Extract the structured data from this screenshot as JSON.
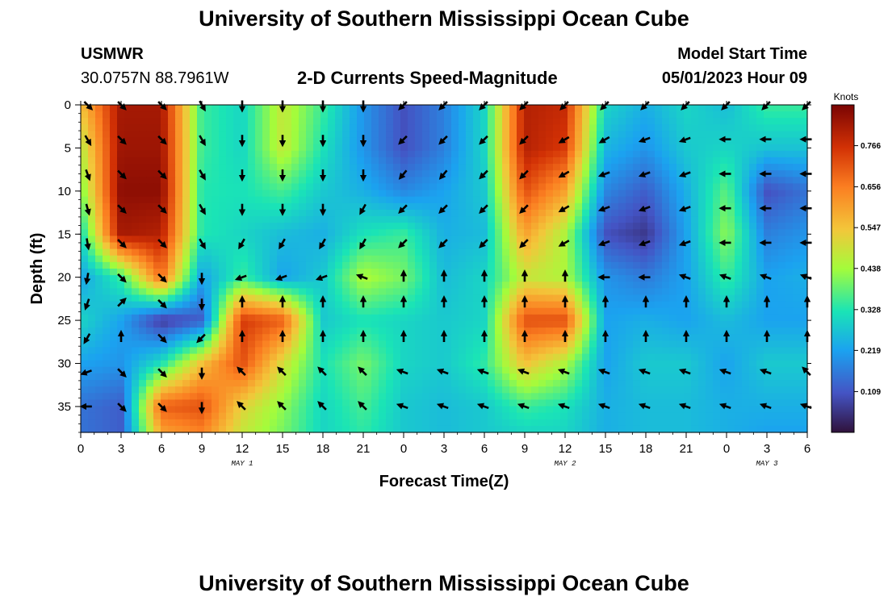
{
  "header": {
    "title": "University of Southern Mississippi Ocean Cube",
    "station": "USMWR",
    "coords": "30.0757N  88.7961W",
    "subtitle": "2-D Currents Speed-Magnitude",
    "model_start_label": "Model Start Time",
    "model_start_value": "05/01/2023 Hour 09"
  },
  "footer": {
    "title": "University of Southern Mississippi Ocean Cube"
  },
  "chart_data": {
    "type": "heatmap",
    "title": "2-D Currents Speed-Magnitude",
    "xlabel": "Forecast Time(Z)",
    "ylabel": "Depth (ft)",
    "x_range_hours": [
      0,
      54
    ],
    "x_tick_labels": [
      "0",
      "3",
      "6",
      "9",
      "12",
      "15",
      "18",
      "21",
      "0",
      "3",
      "6",
      "9",
      "12",
      "15",
      "18",
      "21",
      "0",
      "3",
      "6"
    ],
    "date_labels": [
      {
        "text": "MAY 1",
        "hour": 12
      },
      {
        "text": "MAY 2",
        "hour": 36
      },
      {
        "text": "MAY 3",
        "hour": 51
      }
    ],
    "depth_range_ft": [
      0,
      38
    ],
    "y_ticks": [
      0,
      5,
      10,
      15,
      20,
      25,
      30,
      35
    ],
    "colorbar": {
      "label": "Knots",
      "range": [
        0,
        0.875
      ],
      "ticks": [
        0.109,
        0.219,
        0.328,
        0.438,
        0.547,
        0.656,
        0.766
      ]
    },
    "speed_field_knots": {
      "columns_hour": [
        0,
        3,
        6,
        9,
        12,
        15,
        18,
        21,
        24,
        27,
        30,
        33,
        36,
        39,
        42,
        45,
        48,
        51,
        54
      ],
      "rows_depth_ft": [
        0,
        5,
        10,
        15,
        20,
        25,
        30,
        35,
        38
      ],
      "values": [
        [
          0.55,
          0.82,
          0.82,
          0.35,
          0.3,
          0.48,
          0.35,
          0.2,
          0.1,
          0.17,
          0.3,
          0.8,
          0.78,
          0.3,
          0.24,
          0.3,
          0.26,
          0.35,
          0.35
        ],
        [
          0.46,
          0.83,
          0.83,
          0.35,
          0.3,
          0.48,
          0.32,
          0.2,
          0.1,
          0.17,
          0.3,
          0.8,
          0.75,
          0.25,
          0.2,
          0.28,
          0.3,
          0.27,
          0.27
        ],
        [
          0.4,
          0.85,
          0.85,
          0.33,
          0.32,
          0.36,
          0.28,
          0.24,
          0.18,
          0.22,
          0.28,
          0.72,
          0.6,
          0.18,
          0.12,
          0.24,
          0.38,
          0.1,
          0.15
        ],
        [
          0.3,
          0.82,
          0.8,
          0.33,
          0.3,
          0.26,
          0.24,
          0.32,
          0.35,
          0.24,
          0.26,
          0.6,
          0.45,
          0.1,
          0.06,
          0.22,
          0.42,
          0.17,
          0.2
        ],
        [
          0.22,
          0.35,
          0.68,
          0.22,
          0.35,
          0.22,
          0.28,
          0.45,
          0.4,
          0.26,
          0.3,
          0.48,
          0.45,
          0.2,
          0.16,
          0.22,
          0.35,
          0.22,
          0.24
        ],
        [
          0.3,
          0.22,
          0.06,
          0.12,
          0.75,
          0.7,
          0.28,
          0.32,
          0.3,
          0.28,
          0.3,
          0.72,
          0.72,
          0.22,
          0.24,
          0.22,
          0.26,
          0.22,
          0.22
        ],
        [
          0.22,
          0.2,
          0.32,
          0.55,
          0.72,
          0.5,
          0.32,
          0.4,
          0.3,
          0.28,
          0.34,
          0.55,
          0.45,
          0.22,
          0.28,
          0.28,
          0.22,
          0.28,
          0.28
        ],
        [
          0.15,
          0.12,
          0.7,
          0.72,
          0.52,
          0.42,
          0.3,
          0.36,
          0.28,
          0.26,
          0.28,
          0.35,
          0.32,
          0.24,
          0.26,
          0.26,
          0.24,
          0.24,
          0.24
        ],
        [
          0.15,
          0.12,
          0.6,
          0.65,
          0.48,
          0.4,
          0.3,
          0.34,
          0.28,
          0.26,
          0.28,
          0.3,
          0.3,
          0.24,
          0.26,
          0.26,
          0.24,
          0.22,
          0.22
        ]
      ]
    },
    "vector_hours": [
      0.5,
      3,
      6,
      9,
      12,
      15,
      18,
      21,
      24,
      27,
      30,
      33,
      36,
      39,
      42,
      45,
      48,
      51,
      54
    ],
    "vector_depths_ft": [
      0,
      4,
      8,
      12,
      16,
      20,
      23,
      27,
      31,
      35
    ],
    "vector_directions_deg": [
      [
        315,
        315,
        315,
        300,
        270,
        270,
        270,
        270,
        225,
        225,
        225,
        225,
        225,
        225,
        225,
        225,
        225,
        225,
        225
      ],
      [
        300,
        315,
        315,
        300,
        270,
        270,
        270,
        270,
        225,
        225,
        225,
        225,
        210,
        210,
        200,
        200,
        180,
        180,
        180
      ],
      [
        290,
        315,
        315,
        300,
        270,
        270,
        270,
        270,
        230,
        230,
        225,
        225,
        210,
        200,
        200,
        200,
        180,
        180,
        180
      ],
      [
        285,
        315,
        315,
        300,
        270,
        270,
        270,
        240,
        225,
        225,
        225,
        225,
        210,
        200,
        200,
        200,
        180,
        180,
        180
      ],
      [
        280,
        315,
        315,
        300,
        240,
        240,
        240,
        240,
        225,
        225,
        225,
        225,
        210,
        200,
        200,
        200,
        180,
        180,
        180
      ],
      [
        260,
        315,
        315,
        270,
        200,
        200,
        200,
        160,
        90,
        90,
        90,
        90,
        90,
        180,
        180,
        160,
        160,
        160,
        160
      ],
      [
        250,
        45,
        315,
        270,
        90,
        90,
        90,
        90,
        90,
        90,
        90,
        90,
        90,
        90,
        90,
        90,
        90,
        90,
        90
      ],
      [
        240,
        90,
        315,
        225,
        90,
        90,
        90,
        90,
        90,
        90,
        90,
        90,
        90,
        90,
        90,
        90,
        90,
        90,
        90
      ],
      [
        200,
        315,
        315,
        270,
        135,
        135,
        135,
        135,
        160,
        160,
        160,
        160,
        160,
        160,
        160,
        160,
        160,
        160,
        135
      ],
      [
        180,
        315,
        315,
        270,
        135,
        135,
        135,
        135,
        160,
        160,
        160,
        160,
        160,
        160,
        160,
        160,
        160,
        160,
        160
      ]
    ]
  }
}
